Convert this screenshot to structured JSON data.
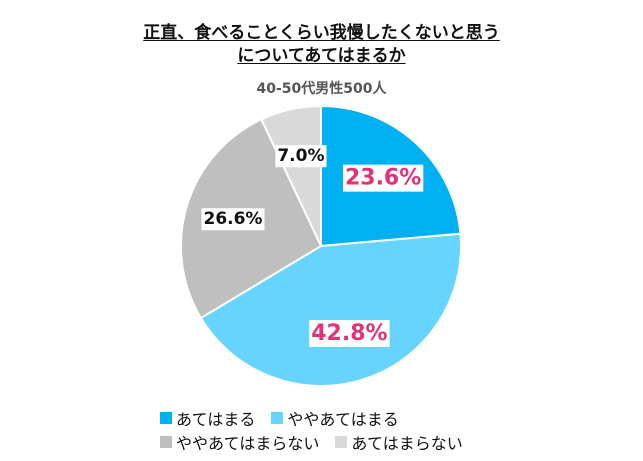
{
  "title_line1": "正直、食べることくらい我慢したくないと思う",
  "title_line2": "についてあてはまるか",
  "subtitle": "40-50代男性500人",
  "chart_data": {
    "type": "pie",
    "title": "正直、食べることくらい我慢したくないと思うについてあてはまるか",
    "subtitle": "40-50代男性500人",
    "start_angle_deg": 0,
    "direction": "clockwise",
    "legend_position": "bottom",
    "slices": [
      {
        "name": "あてはまる",
        "value": 23.6,
        "label": "23.6%",
        "color": "#00b0f0",
        "label_color": "#e0337a"
      },
      {
        "name": "ややあてはまる",
        "value": 42.8,
        "label": "42.8%",
        "color": "#66d4ff",
        "label_color": "#e0337a"
      },
      {
        "name": "ややあてはまらない",
        "value": 26.6,
        "label": "26.6%",
        "color": "#bfbfbf",
        "label_color": "#111111"
      },
      {
        "name": "あてはまらない",
        "value": 7.0,
        "label": "7.0%",
        "color": "#d9d9d9",
        "label_color": "#111111"
      }
    ]
  },
  "legend": {
    "row1": [
      {
        "label": "あてはまる",
        "color": "#00b0f0"
      },
      {
        "label": "ややあてはまる",
        "color": "#66d4ff"
      }
    ],
    "row2": [
      {
        "label": "ややあてはまらない",
        "color": "#bfbfbf"
      },
      {
        "label": "あてはまらない",
        "color": "#d9d9d9"
      }
    ]
  }
}
